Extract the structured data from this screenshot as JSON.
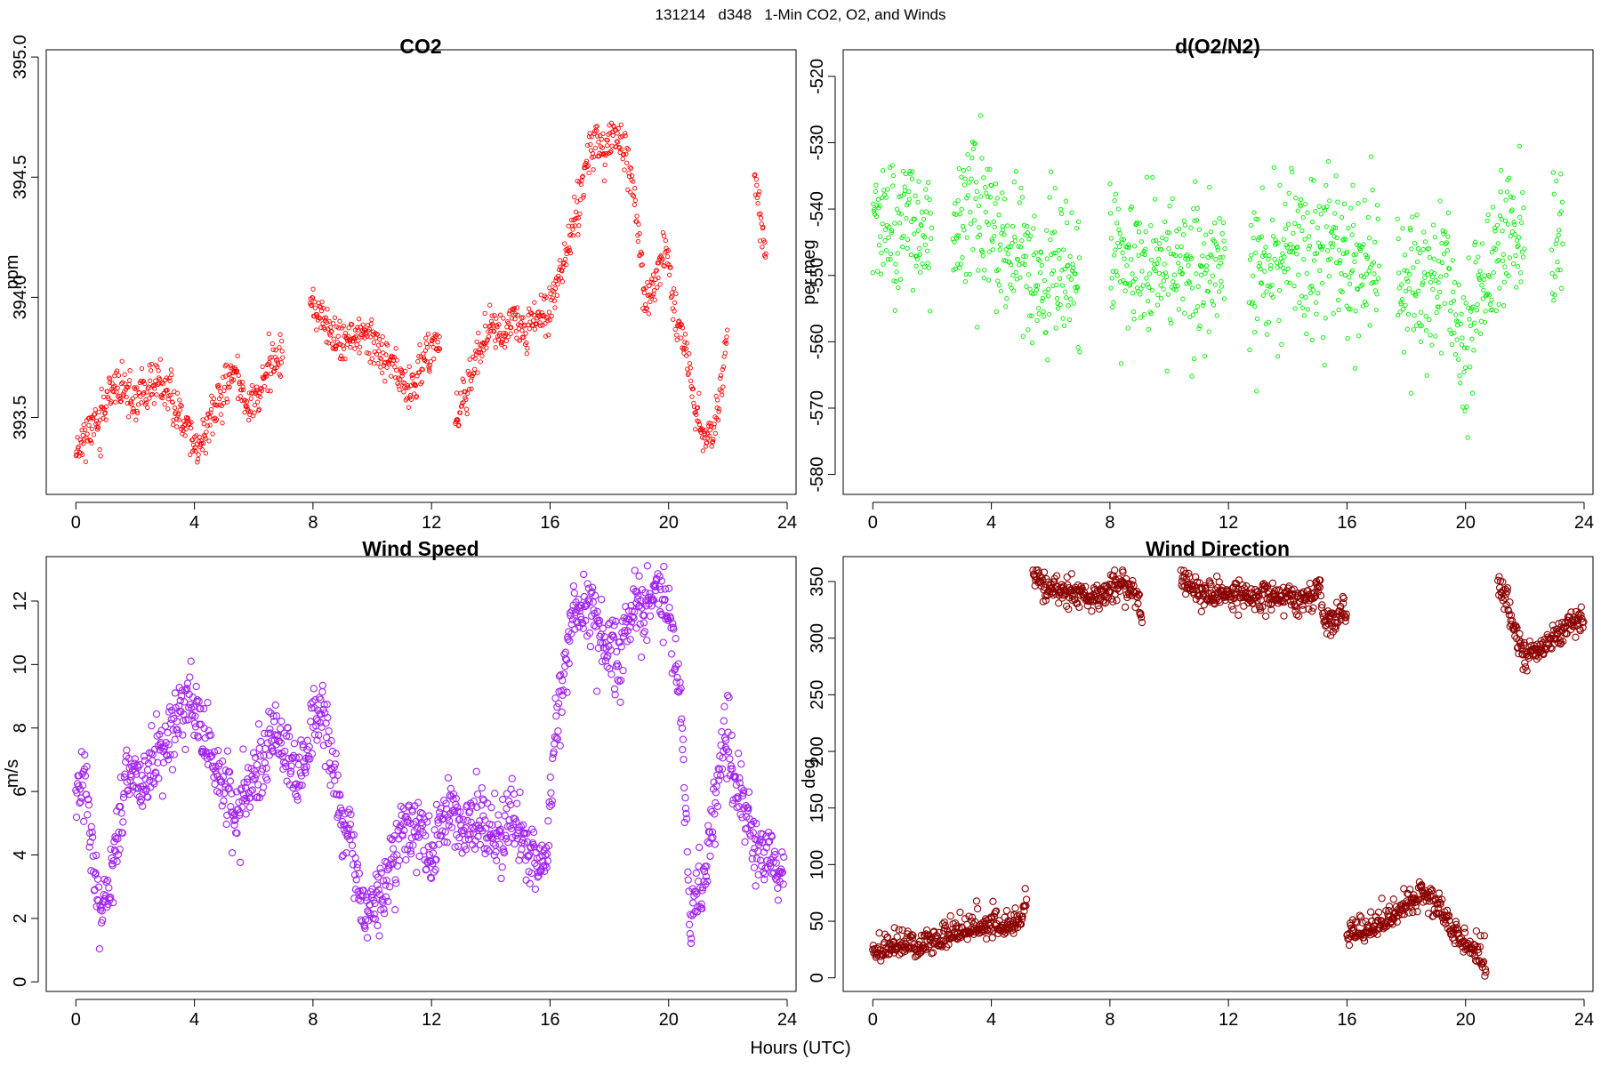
{
  "figure": {
    "suptitle": "131214   d348   1-Min CO2, O2, and Winds",
    "xlabel": "Hours (UTC)"
  },
  "chart_data": [
    {
      "type": "scatter",
      "title": "CO2",
      "ylabel": "ppm",
      "xlim": [
        -1,
        24.3
      ],
      "ylim": [
        393.18,
        395.03
      ],
      "xticks": [
        0,
        4,
        8,
        12,
        16,
        20,
        24
      ],
      "yticks": [
        393.5,
        394.0,
        394.5,
        395.0
      ],
      "ytick_labels": [
        "393.5",
        "394.0",
        "394.5",
        "395.0"
      ],
      "color": "#ff0000",
      "marker_size": "small",
      "trend": [
        [
          0.0,
          393.38
        ],
        [
          0.4,
          393.43
        ],
        [
          0.8,
          393.5
        ],
        [
          1.1,
          393.58
        ],
        [
          1.5,
          393.64
        ],
        [
          1.9,
          393.56
        ],
        [
          2.8,
          393.65
        ],
        [
          3.3,
          393.55
        ],
        [
          3.8,
          393.47
        ],
        [
          4.1,
          393.35
        ],
        [
          4.6,
          393.52
        ],
        [
          5.0,
          393.6
        ],
        [
          5.4,
          393.7
        ],
        [
          5.8,
          393.55
        ],
        [
          6.2,
          393.6
        ],
        [
          6.6,
          393.72
        ],
        [
          7.0,
          393.75
        ],
        [
          7.05,
          null
        ],
        [
          7.9,
          394.0
        ],
        [
          8.4,
          393.88
        ],
        [
          8.9,
          393.8
        ],
        [
          9.3,
          393.82
        ],
        [
          9.8,
          393.85
        ],
        [
          10.3,
          393.78
        ],
        [
          10.8,
          393.72
        ],
        [
          11.1,
          393.6
        ],
        [
          11.5,
          393.68
        ],
        [
          11.9,
          393.76
        ],
        [
          12.3,
          393.85
        ],
        [
          12.35,
          null
        ],
        [
          12.8,
          393.5
        ],
        [
          13.2,
          393.62
        ],
        [
          13.6,
          393.78
        ],
        [
          14.0,
          393.88
        ],
        [
          14.4,
          393.85
        ],
        [
          14.8,
          393.9
        ],
        [
          15.2,
          393.85
        ],
        [
          15.6,
          393.93
        ],
        [
          16.0,
          393.95
        ],
        [
          16.4,
          394.12
        ],
        [
          16.8,
          394.32
        ],
        [
          17.1,
          394.48
        ],
        [
          17.4,
          394.64
        ],
        [
          17.8,
          394.62
        ],
        [
          18.2,
          394.68
        ],
        [
          18.6,
          394.58
        ],
        [
          18.9,
          394.35
        ],
        [
          19.2,
          394.0
        ],
        [
          19.5,
          394.05
        ],
        [
          19.9,
          394.2
        ],
        [
          20.3,
          393.88
        ],
        [
          20.6,
          393.8
        ],
        [
          20.9,
          393.5
        ],
        [
          21.2,
          393.42
        ],
        [
          21.6,
          393.5
        ],
        [
          22.0,
          393.85
        ],
        [
          22.05,
          null
        ],
        [
          22.9,
          394.5
        ],
        [
          23.3,
          394.15
        ]
      ]
    },
    {
      "type": "scatter",
      "title": "d(O2/N2)",
      "ylabel": "per meg",
      "xlim": [
        -1,
        24.3
      ],
      "ylim": [
        -583,
        -516
      ],
      "xticks": [
        0,
        4,
        8,
        12,
        16,
        20,
        24
      ],
      "yticks": [
        -580,
        -570,
        -560,
        -550,
        -540,
        -530,
        -520
      ],
      "ytick_labels": [
        "-580",
        "-570",
        "-560",
        "-550",
        "-540",
        "-530",
        "-520"
      ],
      "color": "#00ee00",
      "marker_size": "small",
      "trend": [
        [
          0.0,
          -541
        ],
        [
          0.5,
          -543
        ],
        [
          1.0,
          -543
        ],
        [
          1.5,
          -542
        ],
        [
          2.0,
          -544
        ],
        [
          2.05,
          null
        ],
        [
          2.7,
          -542
        ],
        [
          3.2,
          -541
        ],
        [
          3.7,
          -542
        ],
        [
          4.2,
          -546
        ],
        [
          4.7,
          -549
        ],
        [
          5.2,
          -550
        ],
        [
          5.7,
          -550
        ],
        [
          6.2,
          -549
        ],
        [
          6.6,
          -550
        ],
        [
          7.0,
          -551
        ],
        [
          7.05,
          null
        ],
        [
          8.0,
          -546
        ],
        [
          8.5,
          -548
        ],
        [
          9.0,
          -548
        ],
        [
          9.5,
          -550
        ],
        [
          10.0,
          -549
        ],
        [
          10.5,
          -550
        ],
        [
          11.0,
          -550
        ],
        [
          11.5,
          -549
        ],
        [
          11.9,
          -549
        ],
        [
          11.95,
          null
        ],
        [
          12.7,
          -550
        ],
        [
          13.2,
          -549
        ],
        [
          13.7,
          -548
        ],
        [
          14.2,
          -547
        ],
        [
          14.7,
          -548
        ],
        [
          15.2,
          -547
        ],
        [
          15.7,
          -547
        ],
        [
          16.2,
          -548
        ],
        [
          16.7,
          -548
        ],
        [
          17.1,
          -549
        ],
        [
          17.15,
          null
        ],
        [
          17.7,
          -551
        ],
        [
          18.2,
          -551
        ],
        [
          18.7,
          -551
        ],
        [
          19.2,
          -550
        ],
        [
          19.6,
          -557
        ],
        [
          20.0,
          -565
        ],
        [
          20.4,
          -553
        ],
        [
          20.8,
          -548
        ],
        [
          21.2,
          -546
        ],
        [
          21.6,
          -541
        ],
        [
          22.0,
          -547
        ],
        [
          22.05,
          null
        ],
        [
          22.9,
          -549
        ],
        [
          23.3,
          -542
        ]
      ]
    },
    {
      "type": "scatter",
      "title": "Wind Speed",
      "ylabel": "m/s",
      "xlim": [
        -1,
        24.3
      ],
      "ylim": [
        -0.3,
        13.4
      ],
      "xticks": [
        0,
        4,
        8,
        12,
        16,
        20,
        24
      ],
      "yticks": [
        0,
        2,
        4,
        6,
        8,
        10,
        12
      ],
      "ytick_labels": [
        "0",
        "2",
        "4",
        "6",
        "8",
        "10",
        "12"
      ],
      "color": "#a020f0",
      "marker_size": "large",
      "trend": [
        [
          0.0,
          6.0
        ],
        [
          0.3,
          6.5
        ],
        [
          0.6,
          3.5
        ],
        [
          0.9,
          2.0
        ],
        [
          1.2,
          3.5
        ],
        [
          1.5,
          5.5
        ],
        [
          1.8,
          7.0
        ],
        [
          2.1,
          6.5
        ],
        [
          2.4,
          6.0
        ],
        [
          2.7,
          7.0
        ],
        [
          3.0,
          7.5
        ],
        [
          3.3,
          8.0
        ],
        [
          3.6,
          8.8
        ],
        [
          3.9,
          8.8
        ],
        [
          4.2,
          8.0
        ],
        [
          4.5,
          7.2
        ],
        [
          4.8,
          6.5
        ],
        [
          5.1,
          6.0
        ],
        [
          5.4,
          5.0
        ],
        [
          5.7,
          5.8
        ],
        [
          6.0,
          6.5
        ],
        [
          6.3,
          7.0
        ],
        [
          6.6,
          8.0
        ],
        [
          6.9,
          7.5
        ],
        [
          7.2,
          7.0
        ],
        [
          7.5,
          6.5
        ],
        [
          7.8,
          7.3
        ],
        [
          8.1,
          8.5
        ],
        [
          8.4,
          8.5
        ],
        [
          8.7,
          6.5
        ],
        [
          9.0,
          5.0
        ],
        [
          9.3,
          4.5
        ],
        [
          9.6,
          2.0
        ],
        [
          9.9,
          2.5
        ],
        [
          10.2,
          2.8
        ],
        [
          10.5,
          3.0
        ],
        [
          10.8,
          4.0
        ],
        [
          11.1,
          5.0
        ],
        [
          11.4,
          5.0
        ],
        [
          11.7,
          4.5
        ],
        [
          12.0,
          4.0
        ],
        [
          12.3,
          5.0
        ],
        [
          12.6,
          5.5
        ],
        [
          12.9,
          5.0
        ],
        [
          13.2,
          4.8
        ],
        [
          13.5,
          5.5
        ],
        [
          13.8,
          4.5
        ],
        [
          14.1,
          4.8
        ],
        [
          14.4,
          4.5
        ],
        [
          14.7,
          5.5
        ],
        [
          15.0,
          4.5
        ],
        [
          15.3,
          4.0
        ],
        [
          15.6,
          3.5
        ],
        [
          15.9,
          4.0
        ],
        [
          16.2,
          8.5
        ],
        [
          16.5,
          10.0
        ],
        [
          16.8,
          11.5
        ],
        [
          17.1,
          11.8
        ],
        [
          17.4,
          11.5
        ],
        [
          17.7,
          11.0
        ],
        [
          18.0,
          10.5
        ],
        [
          18.3,
          10.0
        ],
        [
          18.6,
          11.0
        ],
        [
          18.9,
          12.0
        ],
        [
          19.2,
          11.5
        ],
        [
          19.5,
          12.5
        ],
        [
          19.8,
          12.0
        ],
        [
          20.1,
          11.0
        ],
        [
          20.4,
          9.0
        ],
        [
          20.7,
          2.5
        ],
        [
          21.0,
          2.5
        ],
        [
          21.3,
          4.0
        ],
        [
          21.6,
          6.0
        ],
        [
          21.9,
          8.0
        ],
        [
          22.2,
          6.5
        ],
        [
          22.5,
          6.0
        ],
        [
          22.8,
          4.5
        ],
        [
          23.1,
          3.8
        ],
        [
          23.4,
          4.0
        ],
        [
          23.7,
          3.5
        ],
        [
          23.9,
          3.5
        ]
      ]
    },
    {
      "type": "scatter",
      "title": "Wind Direction",
      "ylabel": "deg",
      "xlim": [
        -1,
        24.3
      ],
      "ylim": [
        -12,
        372
      ],
      "xticks": [
        0,
        4,
        8,
        12,
        16,
        20,
        24
      ],
      "yticks": [
        0,
        50,
        100,
        150,
        200,
        250,
        300,
        350
      ],
      "ytick_labels": [
        "0",
        "50",
        "100",
        "150",
        "200",
        "250",
        "300",
        "350"
      ],
      "color": "#8b0000",
      "marker_size": "large",
      "trend": [
        [
          0.0,
          20
        ],
        [
          0.5,
          25
        ],
        [
          1.0,
          30
        ],
        [
          1.5,
          25
        ],
        [
          2.0,
          30
        ],
        [
          2.5,
          35
        ],
        [
          3.0,
          40
        ],
        [
          3.5,
          43
        ],
        [
          4.0,
          44
        ],
        [
          4.5,
          45
        ],
        [
          5.0,
          48
        ],
        [
          5.2,
          70
        ],
        [
          5.25,
          null
        ],
        [
          5.4,
          355
        ],
        [
          5.8,
          345
        ],
        [
          6.3,
          342
        ],
        [
          6.8,
          338
        ],
        [
          7.3,
          335
        ],
        [
          7.8,
          340
        ],
        [
          8.3,
          350
        ],
        [
          8.8,
          345
        ],
        [
          9.1,
          320
        ],
        [
          9.2,
          null
        ],
        [
          10.4,
          355
        ],
        [
          10.8,
          345
        ],
        [
          11.3,
          340
        ],
        [
          11.8,
          338
        ],
        [
          12.3,
          338
        ],
        [
          12.8,
          336
        ],
        [
          13.3,
          338
        ],
        [
          13.8,
          337
        ],
        [
          14.3,
          335
        ],
        [
          14.8,
          338
        ],
        [
          15.1,
          345
        ],
        [
          15.2,
          315
        ],
        [
          15.5,
          315
        ],
        [
          16.0,
          325
        ],
        [
          16.05,
          null
        ],
        [
          16.0,
          38
        ],
        [
          16.5,
          40
        ],
        [
          17.0,
          43
        ],
        [
          17.5,
          50
        ],
        [
          18.0,
          65
        ],
        [
          18.5,
          75
        ],
        [
          18.8,
          72
        ],
        [
          19.2,
          55
        ],
        [
          19.6,
          40
        ],
        [
          20.0,
          30
        ],
        [
          20.4,
          20
        ],
        [
          20.7,
          5
        ],
        [
          20.75,
          null
        ],
        [
          21.1,
          350
        ],
        [
          21.4,
          335
        ],
        [
          21.7,
          300
        ],
        [
          22.0,
          285
        ],
        [
          22.4,
          290
        ],
        [
          22.8,
          300
        ],
        [
          23.2,
          305
        ],
        [
          23.6,
          315
        ],
        [
          24.0,
          318
        ]
      ]
    }
  ]
}
